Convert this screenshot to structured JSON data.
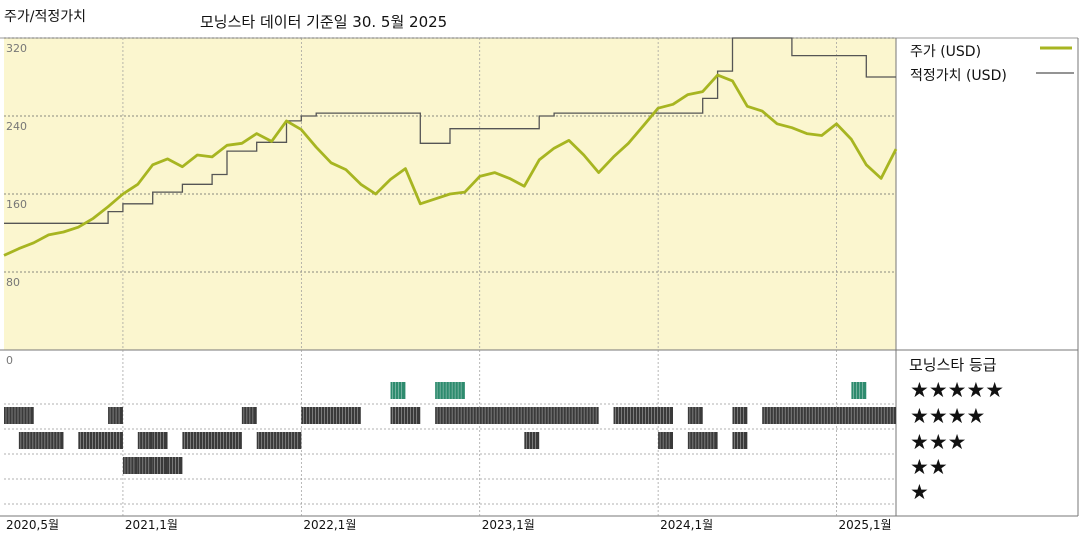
{
  "header": {
    "title": "주가/적정가치",
    "subtitle": "모닝스타 데이터 기준일 30. 5월 2025"
  },
  "colors": {
    "price_line": "#a7b521",
    "fair_value_line": "#555555",
    "plot_bg": "#fbf6cf",
    "bar_dark": "#3a3a3a",
    "bar_green": "#2e8b6e"
  },
  "legend": {
    "price_label": "주가 (USD)",
    "fair_value_label": "적정가치 (USD)"
  },
  "rating_panel": {
    "title": "모닝스타 등급",
    "rows": [
      "★★★★★",
      "★★★★",
      "★★★",
      "★★",
      "★"
    ]
  },
  "chart_data": {
    "type": "line",
    "x_start": "2020-05",
    "x_end": "2025-05",
    "x_ticks": [
      {
        "date": "2020-05",
        "label": "2020,5월"
      },
      {
        "date": "2021-01",
        "label": "2021,1월"
      },
      {
        "date": "2022-01",
        "label": "2022,1월"
      },
      {
        "date": "2023-01",
        "label": "2023,1월"
      },
      {
        "date": "2024-01",
        "label": "2024,1월"
      },
      {
        "date": "2025-01",
        "label": "2025,1월"
      }
    ],
    "y_ticks": [
      0,
      80,
      160,
      240,
      320
    ],
    "ylim": [
      0,
      320
    ],
    "grid": true,
    "legend_position": "top-right",
    "series": [
      {
        "name": "주가 (USD)",
        "points": [
          [
            "2020-05",
            97
          ],
          [
            "2020-06",
            104
          ],
          [
            "2020-07",
            110
          ],
          [
            "2020-08",
            118
          ],
          [
            "2020-09",
            121
          ],
          [
            "2020-10",
            126
          ],
          [
            "2020-11",
            135
          ],
          [
            "2020-12",
            147
          ],
          [
            "2021-01",
            160
          ],
          [
            "2021-02",
            170
          ],
          [
            "2021-03",
            190
          ],
          [
            "2021-04",
            196
          ],
          [
            "2021-05",
            188
          ],
          [
            "2021-06",
            200
          ],
          [
            "2021-07",
            198
          ],
          [
            "2021-08",
            210
          ],
          [
            "2021-09",
            212
          ],
          [
            "2021-10",
            222
          ],
          [
            "2021-11",
            214
          ],
          [
            "2021-12",
            235
          ],
          [
            "2022-01",
            226
          ],
          [
            "2022-02",
            208
          ],
          [
            "2022-03",
            192
          ],
          [
            "2022-04",
            185
          ],
          [
            "2022-05",
            170
          ],
          [
            "2022-06",
            160
          ],
          [
            "2022-07",
            175
          ],
          [
            "2022-08",
            186
          ],
          [
            "2022-09",
            150
          ],
          [
            "2022-10",
            155
          ],
          [
            "2022-11",
            160
          ],
          [
            "2022-12",
            162
          ],
          [
            "2023-01",
            178
          ],
          [
            "2023-02",
            182
          ],
          [
            "2023-03",
            176
          ],
          [
            "2023-04",
            168
          ],
          [
            "2023-05",
            195
          ],
          [
            "2023-06",
            207
          ],
          [
            "2023-07",
            215
          ],
          [
            "2023-08",
            200
          ],
          [
            "2023-09",
            182
          ],
          [
            "2023-10",
            198
          ],
          [
            "2023-11",
            212
          ],
          [
            "2023-12",
            230
          ],
          [
            "2024-01",
            248
          ],
          [
            "2024-02",
            252
          ],
          [
            "2024-03",
            262
          ],
          [
            "2024-04",
            265
          ],
          [
            "2024-05",
            282
          ],
          [
            "2024-06",
            276
          ],
          [
            "2024-07",
            250
          ],
          [
            "2024-08",
            245
          ],
          [
            "2024-09",
            232
          ],
          [
            "2024-10",
            228
          ],
          [
            "2024-11",
            222
          ],
          [
            "2024-12",
            220
          ],
          [
            "2025-01",
            232
          ],
          [
            "2025-02",
            216
          ],
          [
            "2025-03",
            190
          ],
          [
            "2025-04",
            176
          ],
          [
            "2025-05",
            206
          ]
        ]
      },
      {
        "name": "적정가치 (USD)",
        "step": true,
        "points": [
          [
            "2020-05",
            130
          ],
          [
            "2020-12",
            142
          ],
          [
            "2021-01",
            150
          ],
          [
            "2021-03",
            162
          ],
          [
            "2021-05",
            170
          ],
          [
            "2021-07",
            180
          ],
          [
            "2021-08",
            204
          ],
          [
            "2021-10",
            213
          ],
          [
            "2021-12",
            235
          ],
          [
            "2022-01",
            240
          ],
          [
            "2022-02",
            243
          ],
          [
            "2022-08",
            243
          ],
          [
            "2022-09",
            212
          ],
          [
            "2022-11",
            227
          ],
          [
            "2023-02",
            227
          ],
          [
            "2023-05",
            240
          ],
          [
            "2023-06",
            243
          ],
          [
            "2024-03",
            243
          ],
          [
            "2024-04",
            258
          ],
          [
            "2024-05",
            286
          ],
          [
            "2024-06",
            320
          ],
          [
            "2024-10",
            302
          ],
          [
            "2025-01",
            302
          ],
          [
            "2025-03",
            280
          ],
          [
            "2025-05",
            280
          ]
        ]
      }
    ],
    "rating_history": {
      "levels": [
        5,
        4,
        3,
        2,
        1
      ],
      "segments": [
        {
          "level": 5,
          "start": "2022-07",
          "end": "2022-08",
          "color": "green"
        },
        {
          "level": 5,
          "start": "2022-10",
          "end": "2022-12",
          "color": "green"
        },
        {
          "level": 5,
          "start": "2025-02",
          "end": "2025-03",
          "color": "green"
        },
        {
          "level": 4,
          "start": "2020-05",
          "end": "2020-07",
          "color": "dark"
        },
        {
          "level": 4,
          "start": "2020-12",
          "end": "2021-01",
          "color": "dark"
        },
        {
          "level": 4,
          "start": "2021-09",
          "end": "2021-10",
          "color": "dark"
        },
        {
          "level": 4,
          "start": "2022-01",
          "end": "2022-05",
          "color": "dark"
        },
        {
          "level": 4,
          "start": "2022-07",
          "end": "2022-09",
          "color": "dark"
        },
        {
          "level": 4,
          "start": "2022-10",
          "end": "2023-09",
          "color": "dark"
        },
        {
          "level": 4,
          "start": "2023-10",
          "end": "2024-02",
          "color": "dark"
        },
        {
          "level": 4,
          "start": "2024-03",
          "end": "2024-04",
          "color": "dark"
        },
        {
          "level": 4,
          "start": "2024-06",
          "end": "2024-07",
          "color": "dark"
        },
        {
          "level": 4,
          "start": "2024-08",
          "end": "2025-05",
          "color": "dark"
        },
        {
          "level": 3,
          "start": "2020-06",
          "end": "2020-09",
          "color": "dark"
        },
        {
          "level": 3,
          "start": "2020-10",
          "end": "2021-01",
          "color": "dark"
        },
        {
          "level": 3,
          "start": "2021-02",
          "end": "2021-03",
          "color": "dark"
        },
        {
          "level": 3,
          "start": "2021-03",
          "end": "2021-04",
          "color": "dark"
        },
        {
          "level": 3,
          "start": "2021-05",
          "end": "2021-09",
          "color": "dark"
        },
        {
          "level": 3,
          "start": "2021-10",
          "end": "2022-01",
          "color": "dark"
        },
        {
          "level": 3,
          "start": "2023-04",
          "end": "2023-05",
          "color": "dark"
        },
        {
          "level": 3,
          "start": "2024-01",
          "end": "2024-02",
          "color": "dark"
        },
        {
          "level": 3,
          "start": "2024-03",
          "end": "2024-05",
          "color": "dark"
        },
        {
          "level": 3,
          "start": "2024-06",
          "end": "2024-07",
          "color": "dark"
        },
        {
          "level": 2,
          "start": "2021-01",
          "end": "2021-02",
          "color": "dark"
        },
        {
          "level": 2,
          "start": "2021-02",
          "end": "2021-03",
          "color": "dark"
        },
        {
          "level": 2,
          "start": "2021-03",
          "end": "2021-04",
          "color": "dark"
        },
        {
          "level": 2,
          "start": "2021-04",
          "end": "2021-05",
          "color": "dark"
        }
      ]
    }
  }
}
